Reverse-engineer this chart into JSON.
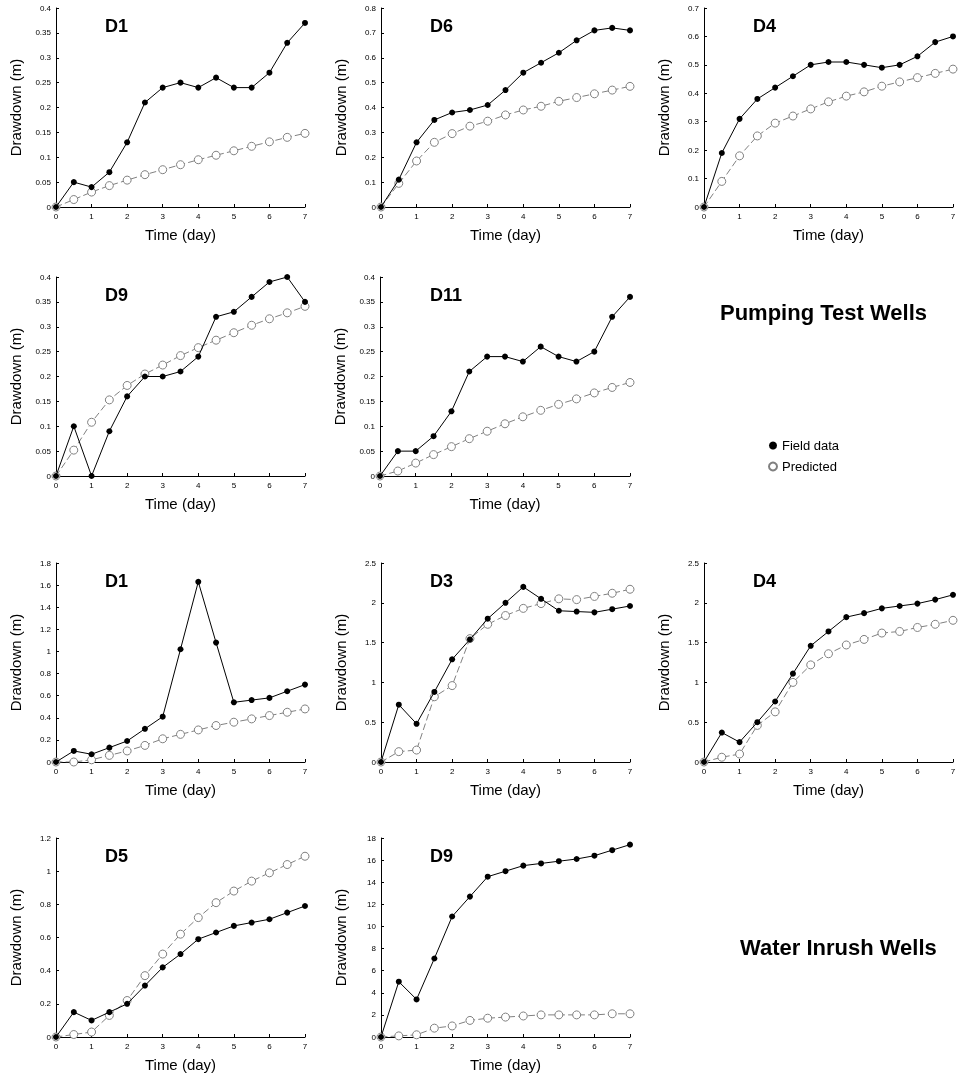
{
  "chart_data": [
    {
      "type": "line",
      "title": "D1",
      "xlabel": "Time (day)",
      "ylabel": "Drawdown (m)",
      "x": [
        0,
        0.5,
        1,
        1.5,
        2,
        2.5,
        3,
        3.5,
        4,
        4.5,
        5,
        5.5,
        6,
        6.5,
        7
      ],
      "xlim": [
        0,
        7
      ],
      "xticks": [
        0,
        1,
        2,
        3,
        4,
        5,
        6,
        7
      ],
      "ylim": [
        0,
        0.4
      ],
      "yticks": [
        0,
        0.05,
        0.1,
        0.15,
        0.2,
        0.25,
        0.3,
        0.35,
        0.4
      ],
      "series": [
        {
          "color": "#000000",
          "marker": "circle",
          "line_style": "solid",
          "values": [
            0,
            0.05,
            0.04,
            0.07,
            0.13,
            0.21,
            0.24,
            0.25,
            0.24,
            0.26,
            0.24,
            0.24,
            0.27,
            0.33,
            0.37
          ]
        },
        {
          "color": "#808080",
          "marker": "circle",
          "line_style": "dashed",
          "values": [
            0,
            0.015,
            0.03,
            0.043,
            0.054,
            0.065,
            0.075,
            0.085,
            0.095,
            0.104,
            0.113,
            0.122,
            0.131,
            0.14,
            0.148
          ]
        }
      ]
    },
    {
      "type": "line",
      "title": "D6",
      "xlabel": "Time (day)",
      "ylabel": "Drawdown (m)",
      "x": [
        0,
        0.5,
        1,
        1.5,
        2,
        2.5,
        3,
        3.5,
        4,
        4.5,
        5,
        5.5,
        6,
        6.5,
        7
      ],
      "xlim": [
        0,
        7
      ],
      "xticks": [
        0,
        1,
        2,
        3,
        4,
        5,
        6,
        7
      ],
      "ylim": [
        0,
        0.8
      ],
      "yticks": [
        0,
        0.1,
        0.2,
        0.3,
        0.4,
        0.5,
        0.6,
        0.7,
        0.8
      ],
      "series": [
        {
          "color": "#000000",
          "marker": "circle",
          "line_style": "solid",
          "values": [
            0,
            0.11,
            0.26,
            0.35,
            0.38,
            0.39,
            0.41,
            0.47,
            0.54,
            0.58,
            0.62,
            0.67,
            0.71,
            0.72,
            0.71
          ]
        },
        {
          "color": "#808080",
          "marker": "circle",
          "line_style": "dashed",
          "values": [
            0,
            0.095,
            0.185,
            0.26,
            0.295,
            0.325,
            0.345,
            0.37,
            0.39,
            0.405,
            0.425,
            0.44,
            0.455,
            0.47,
            0.485
          ]
        }
      ]
    },
    {
      "type": "line",
      "title": "D4",
      "xlabel": "Time (day)",
      "ylabel": "Drawdown (m)",
      "x": [
        0,
        0.5,
        1,
        1.5,
        2,
        2.5,
        3,
        3.5,
        4,
        4.5,
        5,
        5.5,
        6,
        6.5,
        7
      ],
      "xlim": [
        0,
        7
      ],
      "xticks": [
        0,
        1,
        2,
        3,
        4,
        5,
        6,
        7
      ],
      "ylim": [
        0,
        0.7
      ],
      "yticks": [
        0,
        0.1,
        0.2,
        0.3,
        0.4,
        0.5,
        0.6,
        0.7
      ],
      "series": [
        {
          "color": "#000000",
          "marker": "circle",
          "line_style": "solid",
          "values": [
            0,
            0.19,
            0.31,
            0.38,
            0.42,
            0.46,
            0.5,
            0.51,
            0.51,
            0.5,
            0.49,
            0.5,
            0.53,
            0.58,
            0.6
          ]
        },
        {
          "color": "#808080",
          "marker": "circle",
          "line_style": "dashed",
          "values": [
            0,
            0.09,
            0.18,
            0.25,
            0.295,
            0.32,
            0.345,
            0.37,
            0.39,
            0.405,
            0.425,
            0.44,
            0.455,
            0.47,
            0.485
          ]
        }
      ]
    },
    {
      "type": "line",
      "title": "D9",
      "xlabel": "Time (day)",
      "ylabel": "Drawdown (m)",
      "x": [
        0,
        0.5,
        1,
        1.5,
        2,
        2.5,
        3,
        3.5,
        4,
        4.5,
        5,
        5.5,
        6,
        6.5,
        7
      ],
      "xlim": [
        0,
        7
      ],
      "xticks": [
        0,
        1,
        2,
        3,
        4,
        5,
        6,
        7
      ],
      "ylim": [
        0,
        0.4
      ],
      "yticks": [
        0,
        0.05,
        0.1,
        0.15,
        0.2,
        0.25,
        0.3,
        0.35,
        0.4
      ],
      "series": [
        {
          "color": "#000000",
          "marker": "circle",
          "line_style": "solid",
          "values": [
            0,
            0.1,
            0,
            0.09,
            0.16,
            0.2,
            0.2,
            0.21,
            0.24,
            0.32,
            0.33,
            0.36,
            0.39,
            0.4,
            0.35
          ]
        },
        {
          "color": "#808080",
          "marker": "circle",
          "line_style": "dashed",
          "values": [
            0,
            0.052,
            0.108,
            0.153,
            0.182,
            0.205,
            0.223,
            0.242,
            0.258,
            0.273,
            0.288,
            0.303,
            0.316,
            0.328,
            0.341
          ]
        }
      ]
    },
    {
      "type": "line",
      "title": "D11",
      "xlabel": "Time (day)",
      "ylabel": "Drawdown (m)",
      "legend": "right",
      "x": [
        0,
        0.5,
        1,
        1.5,
        2,
        2.5,
        3,
        3.5,
        4,
        4.5,
        5,
        5.5,
        6,
        6.5,
        7
      ],
      "xlim": [
        0,
        7
      ],
      "xticks": [
        0,
        1,
        2,
        3,
        4,
        5,
        6,
        7
      ],
      "ylim": [
        0,
        0.4
      ],
      "yticks": [
        0,
        0.05,
        0.1,
        0.15,
        0.2,
        0.25,
        0.3,
        0.35,
        0.4
      ],
      "series": [
        {
          "name": "Field data",
          "color": "#000000",
          "marker": "circle",
          "line_style": "solid",
          "values": [
            0,
            0.05,
            0.05,
            0.08,
            0.13,
            0.21,
            0.24,
            0.24,
            0.23,
            0.26,
            0.24,
            0.23,
            0.25,
            0.32,
            0.36
          ]
        },
        {
          "name": "Predicted",
          "color": "#808080",
          "marker": "circle",
          "line_style": "dashed",
          "values": [
            0,
            0.01,
            0.026,
            0.043,
            0.059,
            0.075,
            0.09,
            0.105,
            0.119,
            0.132,
            0.144,
            0.155,
            0.167,
            0.178,
            0.188
          ]
        }
      ]
    },
    {
      "type": "other",
      "title": "Pumping Test Wells"
    },
    {
      "type": "line",
      "title": "D1",
      "xlabel": "Time (day)",
      "ylabel": "Drawdown (m)",
      "x": [
        0,
        0.5,
        1,
        1.5,
        2,
        2.5,
        3,
        3.5,
        4,
        4.5,
        5,
        5.5,
        6,
        6.5,
        7
      ],
      "xlim": [
        0,
        7
      ],
      "xticks": [
        0,
        1,
        2,
        3,
        4,
        5,
        6,
        7
      ],
      "ylim": [
        0,
        1.8
      ],
      "yticks": [
        0,
        0.2,
        0.4,
        0.6,
        0.8,
        1,
        1.2,
        1.4,
        1.6,
        1.8
      ],
      "series": [
        {
          "color": "#000000",
          "marker": "circle",
          "line_style": "solid",
          "values": [
            0,
            0.1,
            0.07,
            0.13,
            0.19,
            0.3,
            0.41,
            1.02,
            1.63,
            1.08,
            0.54,
            0.56,
            0.58,
            0.64,
            0.7
          ]
        },
        {
          "color": "#808080",
          "marker": "circle",
          "line_style": "dashed",
          "values": [
            0,
            0,
            0.02,
            0.06,
            0.1,
            0.15,
            0.21,
            0.25,
            0.29,
            0.33,
            0.36,
            0.39,
            0.42,
            0.45,
            0.48
          ]
        }
      ]
    },
    {
      "type": "line",
      "title": "D3",
      "xlabel": "Time (day)",
      "ylabel": "Drawdown (m)",
      "x": [
        0,
        0.5,
        1,
        1.5,
        2,
        2.5,
        3,
        3.5,
        4,
        4.5,
        5,
        5.5,
        6,
        6.5,
        7
      ],
      "xlim": [
        0,
        7
      ],
      "xticks": [
        0,
        1,
        2,
        3,
        4,
        5,
        6,
        7
      ],
      "ylim": [
        0,
        2.5
      ],
      "yticks": [
        0,
        0.5,
        1,
        1.5,
        2,
        2.5
      ],
      "series": [
        {
          "color": "#000000",
          "marker": "circle",
          "line_style": "solid",
          "values": [
            0,
            0.72,
            0.48,
            0.88,
            1.29,
            1.54,
            1.8,
            2,
            2.2,
            2.05,
            1.9,
            1.89,
            1.88,
            1.92,
            1.96
          ]
        },
        {
          "color": "#808080",
          "marker": "circle",
          "line_style": "dashed",
          "values": [
            0,
            0.13,
            0.15,
            0.82,
            0.96,
            1.55,
            1.73,
            1.84,
            1.93,
            1.99,
            2.05,
            2.04,
            2.08,
            2.12,
            2.17
          ]
        }
      ]
    },
    {
      "type": "line",
      "title": "D4",
      "xlabel": "Time (day)",
      "ylabel": "Drawdown (m)",
      "x": [
        0,
        0.5,
        1,
        1.5,
        2,
        2.5,
        3,
        3.5,
        4,
        4.5,
        5,
        5.5,
        6,
        6.5,
        7
      ],
      "xlim": [
        0,
        7
      ],
      "xticks": [
        0,
        1,
        2,
        3,
        4,
        5,
        6,
        7
      ],
      "ylim": [
        0,
        2.5
      ],
      "yticks": [
        0,
        0.5,
        1,
        1.5,
        2,
        2.5
      ],
      "series": [
        {
          "color": "#000000",
          "marker": "circle",
          "line_style": "solid",
          "values": [
            0,
            0.37,
            0.25,
            0.5,
            0.76,
            1.11,
            1.46,
            1.64,
            1.82,
            1.87,
            1.93,
            1.96,
            1.99,
            2.04,
            2.1
          ]
        },
        {
          "color": "#808080",
          "marker": "circle",
          "line_style": "dashed",
          "values": [
            0,
            0.06,
            0.1,
            0.46,
            0.63,
            1,
            1.22,
            1.36,
            1.47,
            1.54,
            1.62,
            1.64,
            1.69,
            1.73,
            1.78
          ]
        }
      ]
    },
    {
      "type": "line",
      "title": "D5",
      "xlabel": "Time (day)",
      "ylabel": "Drawdown (m)",
      "x": [
        0,
        0.5,
        1,
        1.5,
        2,
        2.5,
        3,
        3.5,
        4,
        4.5,
        5,
        5.5,
        6,
        6.5,
        7
      ],
      "xlim": [
        0,
        7
      ],
      "xticks": [
        0,
        1,
        2,
        3,
        4,
        5,
        6,
        7
      ],
      "ylim": [
        0,
        1.2
      ],
      "yticks": [
        0,
        0.2,
        0.4,
        0.6,
        0.8,
        1,
        1.2
      ],
      "series": [
        {
          "color": "#000000",
          "marker": "circle",
          "line_style": "solid",
          "values": [
            0,
            0.15,
            0.1,
            0.15,
            0.2,
            0.31,
            0.42,
            0.5,
            0.59,
            0.63,
            0.67,
            0.69,
            0.71,
            0.75,
            0.79
          ]
        },
        {
          "color": "#808080",
          "marker": "circle",
          "line_style": "dashed",
          "values": [
            0,
            0.015,
            0.03,
            0.13,
            0.22,
            0.37,
            0.5,
            0.62,
            0.72,
            0.81,
            0.88,
            0.94,
            0.99,
            1.04,
            1.09
          ]
        }
      ]
    },
    {
      "type": "line",
      "title": "D9",
      "xlabel": "Time (day)",
      "ylabel": "Drawdown (m)",
      "x": [
        0,
        0.5,
        1,
        1.5,
        2,
        2.5,
        3,
        3.5,
        4,
        4.5,
        5,
        5.5,
        6,
        6.5,
        7
      ],
      "xlim": [
        0,
        7
      ],
      "xticks": [
        0,
        1,
        2,
        3,
        4,
        5,
        6,
        7
      ],
      "ylim": [
        0,
        18
      ],
      "yticks": [
        0,
        2,
        4,
        6,
        8,
        10,
        12,
        14,
        16,
        18
      ],
      "series": [
        {
          "color": "#000000",
          "marker": "circle",
          "line_style": "solid",
          "values": [
            0,
            5,
            3.4,
            7.1,
            10.9,
            12.7,
            14.5,
            15,
            15.5,
            15.7,
            15.9,
            16.1,
            16.4,
            16.9,
            17.4
          ]
        },
        {
          "color": "#808080",
          "marker": "circle",
          "line_style": "dashed",
          "values": [
            0,
            0.1,
            0.2,
            0.8,
            1,
            1.5,
            1.7,
            1.8,
            1.9,
            2,
            2,
            2,
            2,
            2.1,
            2.1
          ]
        }
      ]
    },
    {
      "type": "other",
      "title": "Water Inrush Wells"
    }
  ]
}
